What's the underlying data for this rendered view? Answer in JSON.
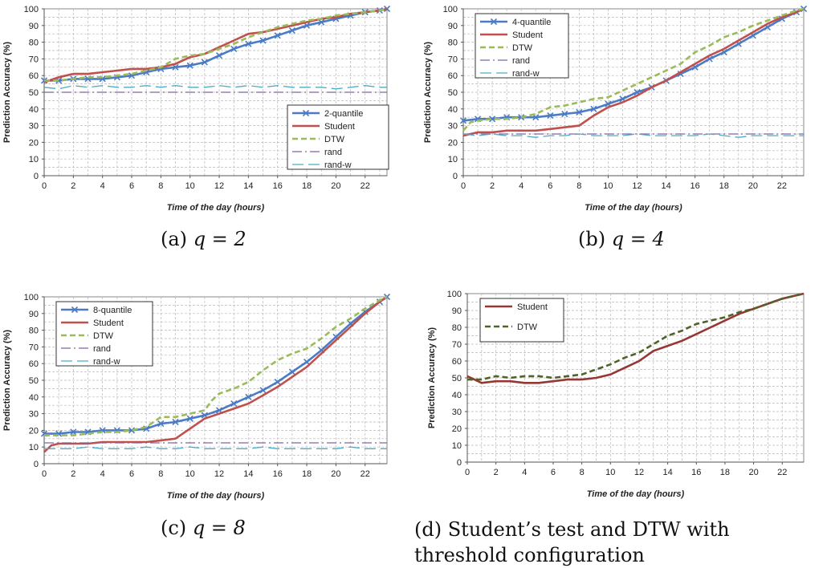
{
  "captions": [
    {
      "prefix": "(a)",
      "eq": "q = 2",
      "text": ""
    },
    {
      "prefix": "(b)",
      "eq": "q = 4",
      "text": ""
    },
    {
      "prefix": "(c)",
      "eq": "q = 8",
      "text": ""
    },
    {
      "prefix": "(d)",
      "eq": "",
      "text": "Student’s test and DTW with threshold configuration"
    }
  ],
  "chart_data": [
    {
      "type": "line",
      "title": "",
      "xlabel": "Time of the day (hours)",
      "ylabel": "Prediction Accuracy (%)",
      "xlim": [
        0,
        23.5
      ],
      "ylim": [
        0,
        100
      ],
      "xticks": [
        0,
        2,
        4,
        6,
        8,
        10,
        12,
        14,
        16,
        18,
        20,
        22
      ],
      "yticks": [
        0,
        10,
        20,
        30,
        40,
        50,
        60,
        70,
        80,
        90,
        100
      ],
      "grid": true,
      "legend_position": "bottom-right",
      "series": [
        {
          "name": "2-quantile",
          "color": "#4a7bc4",
          "style": "solid-x",
          "x": [
            0,
            1,
            2,
            3,
            4,
            5,
            6,
            7,
            8,
            9,
            10,
            11,
            12,
            13,
            14,
            15,
            16,
            17,
            18,
            19,
            20,
            21,
            22,
            23,
            23.5
          ],
          "y": [
            57,
            57,
            58,
            58,
            58,
            59,
            60,
            62,
            64,
            65,
            66,
            68,
            72,
            76,
            79,
            81,
            84,
            87,
            90,
            92,
            94,
            96,
            98,
            99,
            100
          ]
        },
        {
          "name": "Student",
          "color": "#c0504d",
          "style": "solid",
          "x": [
            0,
            1,
            2,
            3,
            4,
            5,
            6,
            7,
            8,
            9,
            10,
            11,
            12,
            13,
            14,
            15,
            16,
            17,
            18,
            19,
            20,
            21,
            22,
            23,
            23.5
          ],
          "y": [
            56,
            59,
            61,
            61,
            62,
            63,
            64,
            64,
            65,
            67,
            71,
            73,
            77,
            81,
            85,
            86,
            88,
            90,
            92,
            94,
            95,
            97,
            98,
            99,
            100
          ]
        },
        {
          "name": "DTW",
          "color": "#9bbb59",
          "style": "dashed",
          "x": [
            0,
            1,
            2,
            3,
            4,
            5,
            6,
            7,
            8,
            9,
            10,
            11,
            12,
            13,
            14,
            15,
            16,
            17,
            18,
            19,
            20,
            21,
            22,
            23,
            23.5
          ],
          "y": [
            57,
            57,
            58,
            59,
            59,
            60,
            61,
            63,
            65,
            70,
            72,
            73,
            76,
            79,
            83,
            86,
            89,
            91,
            93,
            94,
            96,
            97,
            98,
            99,
            100
          ]
        },
        {
          "name": "rand",
          "color": "#8064a2",
          "style": "dashdot",
          "x": [
            0,
            23.5
          ],
          "y": [
            50,
            50
          ]
        },
        {
          "name": "rand-w",
          "color": "#4bacc6",
          "style": "longdash",
          "x": [
            0,
            1,
            2,
            3,
            4,
            5,
            6,
            7,
            8,
            9,
            10,
            11,
            12,
            13,
            14,
            15,
            16,
            17,
            18,
            19,
            20,
            21,
            22,
            23,
            23.5
          ],
          "y": [
            53,
            52,
            54,
            53,
            54,
            53,
            53,
            54,
            53,
            54,
            53,
            53,
            54,
            53,
            54,
            53,
            54,
            53,
            53,
            53,
            52,
            53,
            54,
            53,
            53
          ]
        }
      ]
    },
    {
      "type": "line",
      "title": "",
      "xlabel": "Time of the day (hours)",
      "ylabel": "Prediction Accuracy (%)",
      "xlim": [
        0,
        23.5
      ],
      "ylim": [
        0,
        100
      ],
      "xticks": [
        0,
        2,
        4,
        6,
        8,
        10,
        12,
        14,
        16,
        18,
        20,
        22
      ],
      "yticks": [
        0,
        10,
        20,
        30,
        40,
        50,
        60,
        70,
        80,
        90,
        100
      ],
      "grid": true,
      "legend_position": "top-left",
      "series": [
        {
          "name": "4-quantile",
          "color": "#4a7bc4",
          "style": "solid-x",
          "x": [
            0,
            1,
            2,
            3,
            4,
            5,
            6,
            7,
            8,
            9,
            10,
            11,
            12,
            13,
            14,
            15,
            16,
            17,
            18,
            19,
            20,
            21,
            22,
            23,
            23.5
          ],
          "y": [
            33,
            34,
            34,
            35,
            35,
            35,
            36,
            37,
            38,
            40,
            43,
            46,
            50,
            53,
            57,
            61,
            65,
            70,
            74,
            79,
            84,
            89,
            94,
            98,
            100
          ]
        },
        {
          "name": "Student",
          "color": "#c0504d",
          "style": "solid",
          "x": [
            0,
            1,
            2,
            3,
            4,
            5,
            6,
            7,
            8,
            9,
            10,
            11,
            12,
            13,
            14,
            15,
            16,
            17,
            18,
            19,
            20,
            21,
            22,
            23,
            23.5
          ],
          "y": [
            24,
            26,
            26,
            27,
            27,
            27,
            28,
            29,
            30,
            36,
            41,
            44,
            48,
            53,
            57,
            62,
            67,
            72,
            76,
            81,
            86,
            91,
            95,
            98,
            100
          ]
        },
        {
          "name": "DTW",
          "color": "#9bbb59",
          "style": "dashed",
          "x": [
            0,
            0.5,
            1,
            2,
            3,
            4,
            5,
            6,
            7,
            8,
            9,
            10,
            11,
            12,
            13,
            14,
            15,
            16,
            17,
            18,
            19,
            20,
            21,
            22,
            23,
            23.5
          ],
          "y": [
            27,
            32,
            33,
            34,
            34,
            35,
            37,
            41,
            42,
            44,
            46,
            47,
            51,
            55,
            59,
            63,
            67,
            74,
            78,
            83,
            86,
            90,
            93,
            96,
            99,
            100
          ]
        },
        {
          "name": "rand",
          "color": "#8064a2",
          "style": "dashdot",
          "x": [
            0,
            23.5
          ],
          "y": [
            25,
            25
          ]
        },
        {
          "name": "rand-w",
          "color": "#4bacc6",
          "style": "longdash",
          "x": [
            0,
            1,
            2,
            3,
            4,
            5,
            6,
            7,
            8,
            9,
            10,
            11,
            12,
            13,
            14,
            15,
            16,
            17,
            18,
            19,
            20,
            21,
            22,
            23,
            23.5
          ],
          "y": [
            25,
            24,
            25,
            24,
            24,
            23,
            24,
            24,
            25,
            24,
            24,
            24,
            25,
            24,
            24,
            24,
            24,
            25,
            24,
            23,
            24,
            24,
            24,
            24,
            24
          ]
        }
      ]
    },
    {
      "type": "line",
      "title": "",
      "xlabel": "Time of the day (hours)",
      "ylabel": "Prediction Accuracy (%)",
      "xlim": [
        0,
        23.5
      ],
      "ylim": [
        0,
        100
      ],
      "xticks": [
        0,
        2,
        4,
        6,
        8,
        10,
        12,
        14,
        16,
        18,
        20,
        22
      ],
      "yticks": [
        0,
        10,
        20,
        30,
        40,
        50,
        60,
        70,
        80,
        90,
        100
      ],
      "grid": true,
      "legend_position": "top-left",
      "series": [
        {
          "name": "8-quantile",
          "color": "#4a7bc4",
          "style": "solid-x",
          "x": [
            0,
            1,
            2,
            3,
            4,
            5,
            6,
            7,
            8,
            9,
            10,
            11,
            12,
            13,
            14,
            15,
            16,
            17,
            18,
            19,
            20,
            21,
            22,
            23,
            23.5
          ],
          "y": [
            18,
            18,
            19,
            19,
            20,
            20,
            20,
            21,
            24,
            25,
            27,
            29,
            32,
            36,
            40,
            44,
            49,
            55,
            61,
            68,
            76,
            84,
            91,
            97,
            100
          ]
        },
        {
          "name": "Student",
          "color": "#c0504d",
          "style": "solid",
          "x": [
            0,
            0.5,
            1,
            2,
            3,
            4,
            5,
            6,
            7,
            8,
            9,
            10,
            11,
            12,
            13,
            14,
            15,
            16,
            17,
            18,
            19,
            20,
            21,
            22,
            23,
            23.5
          ],
          "y": [
            7,
            11,
            12,
            12,
            12,
            13,
            13,
            13,
            13,
            14,
            15,
            21,
            27,
            30,
            33,
            36,
            41,
            46,
            52,
            58,
            66,
            74,
            82,
            90,
            97,
            100
          ]
        },
        {
          "name": "DTW",
          "color": "#9bbb59",
          "style": "dashed",
          "x": [
            0,
            1,
            2,
            3,
            4,
            5,
            6,
            7,
            8,
            9,
            10,
            11,
            11.5,
            12,
            13,
            14,
            15,
            16,
            17,
            18,
            19,
            20,
            21,
            22,
            23,
            23.5
          ],
          "y": [
            17,
            17,
            17,
            18,
            19,
            19,
            20,
            22,
            28,
            28,
            30,
            32,
            38,
            42,
            45,
            49,
            56,
            62,
            66,
            69,
            75,
            82,
            87,
            93,
            98,
            100
          ]
        },
        {
          "name": "rand",
          "color": "#8064a2",
          "style": "dashdot",
          "x": [
            0,
            23.5
          ],
          "y": [
            12.5,
            12.5
          ]
        },
        {
          "name": "rand-w",
          "color": "#4bacc6",
          "style": "longdash",
          "x": [
            0,
            1,
            2,
            3,
            4,
            5,
            6,
            7,
            8,
            9,
            10,
            11,
            12,
            13,
            14,
            15,
            16,
            17,
            18,
            19,
            20,
            21,
            22,
            23,
            23.5
          ],
          "y": [
            9,
            9,
            9,
            10,
            9,
            9,
            9,
            10,
            9,
            9,
            10,
            9,
            9,
            9,
            9,
            10,
            9,
            9,
            9,
            9,
            9,
            10,
            9,
            9,
            9
          ]
        }
      ]
    },
    {
      "type": "line",
      "title": "",
      "xlabel": "Time of the day (hours)",
      "ylabel": "Prediction Accuracy (%)",
      "xlim": [
        0,
        23.5
      ],
      "ylim": [
        0,
        100
      ],
      "xticks": [
        0,
        2,
        4,
        6,
        8,
        10,
        12,
        14,
        16,
        18,
        20,
        22
      ],
      "yticks": [
        0,
        10,
        20,
        30,
        40,
        50,
        60,
        70,
        80,
        90,
        100
      ],
      "grid": true,
      "legend_position": "top-left",
      "series": [
        {
          "name": "Student",
          "color": "#953735",
          "style": "solid",
          "x": [
            0,
            0.5,
            1,
            2,
            3,
            4,
            5,
            6,
            7,
            8,
            9,
            10,
            11,
            12,
            13,
            14,
            15,
            16,
            17,
            18,
            19,
            20,
            21,
            22,
            23,
            23.5
          ],
          "y": [
            51,
            49,
            47,
            48,
            48,
            47,
            47,
            48,
            49,
            49,
            50,
            52,
            56,
            60,
            66,
            69,
            72,
            76,
            80,
            84,
            88,
            91,
            94,
            97,
            99,
            100
          ]
        },
        {
          "name": "DTW",
          "color": "#4f6228",
          "style": "dashed",
          "x": [
            0,
            1,
            2,
            3,
            4,
            5,
            6,
            7,
            8,
            9,
            10,
            11,
            12,
            13,
            14,
            15,
            16,
            17,
            18,
            19,
            20,
            21,
            22,
            23,
            23.5
          ],
          "y": [
            49,
            49,
            51,
            50,
            51,
            51,
            50,
            51,
            52,
            55,
            58,
            62,
            65,
            70,
            75,
            78,
            82,
            84,
            86,
            89,
            91,
            94,
            97,
            99,
            100
          ]
        }
      ]
    }
  ]
}
